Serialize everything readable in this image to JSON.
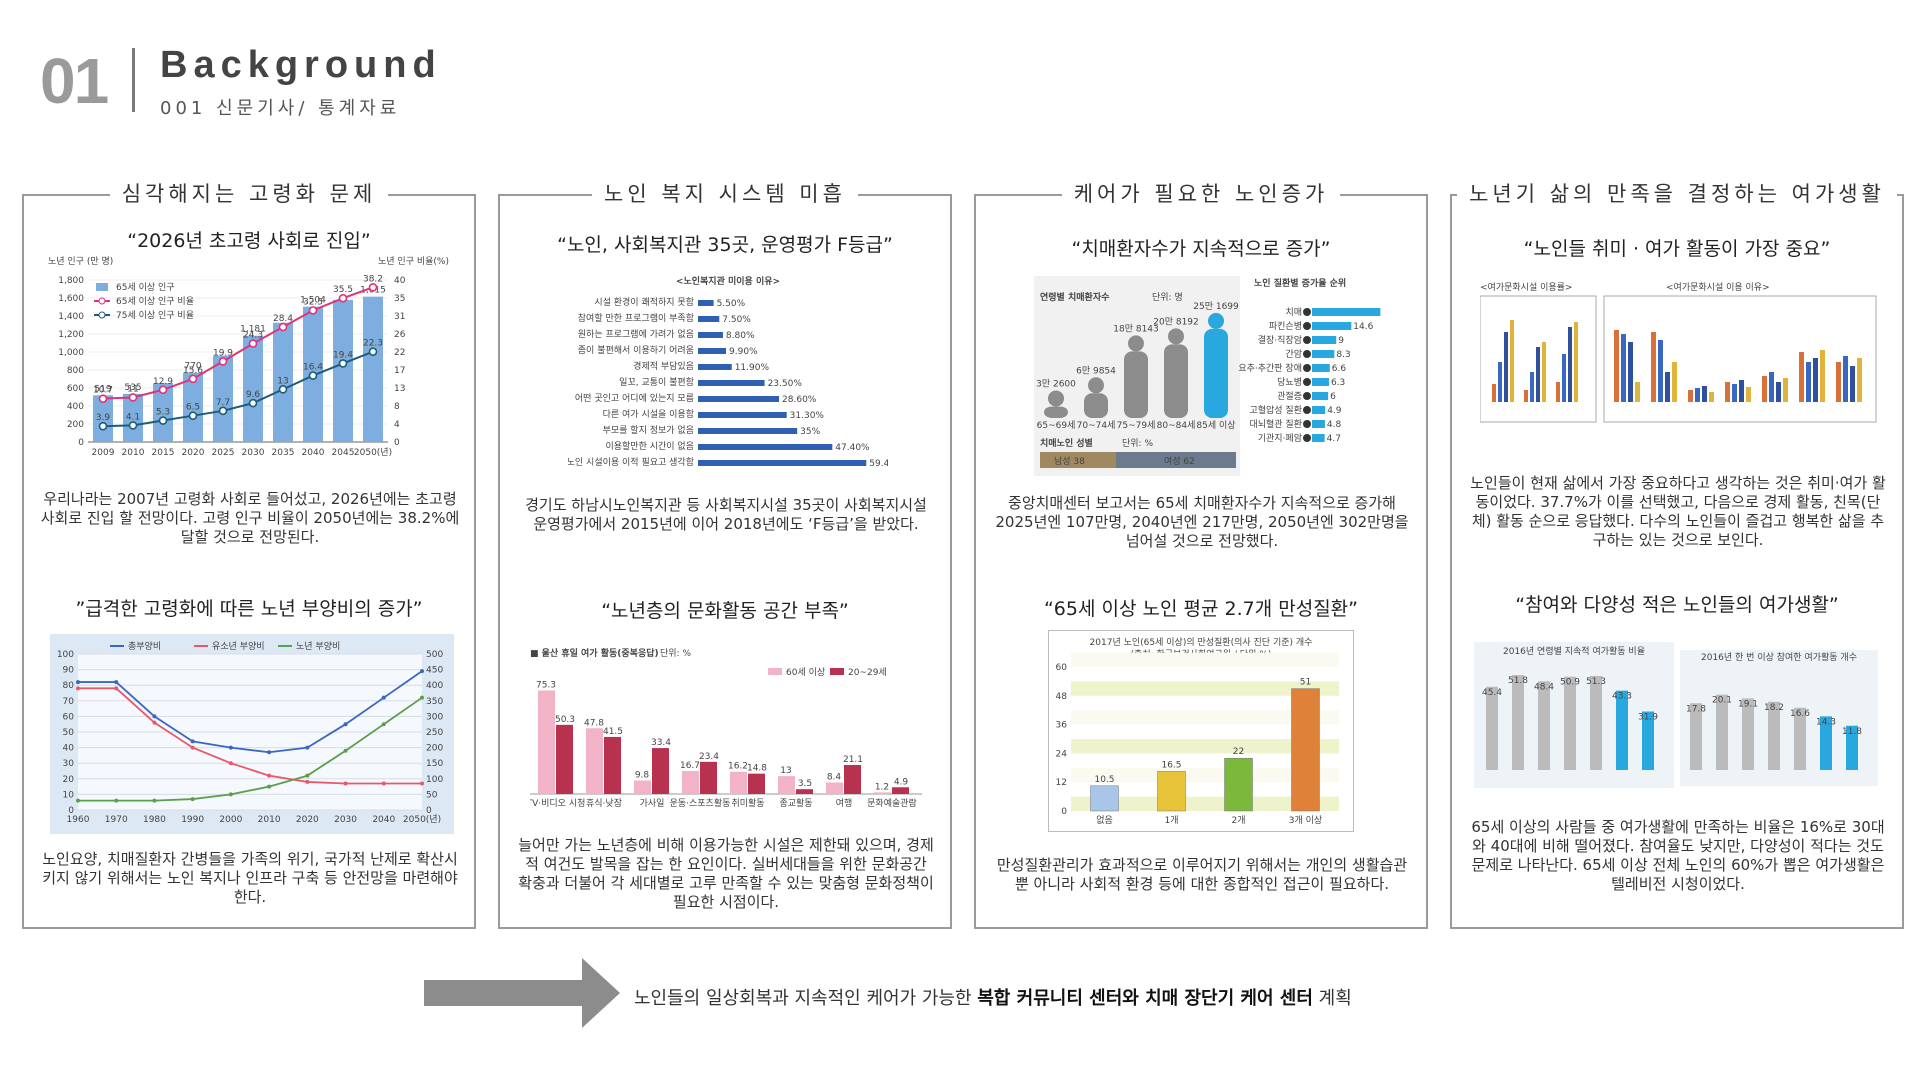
{
  "header": {
    "number": "01",
    "title": "Background",
    "subtitle": "001 신문기사/ 통계자료"
  },
  "panels": [
    {
      "title": "심각해지는 고령화 문제",
      "sections": [
        {
          "heading": "“2026년 초고령 사회로 진입”",
          "body": "우리나라는 2007년 고령화 사회로 들어섰고, 2026년에는 초고령 사회로 진입 할 전망이다. 고령 인구 비율이 2050년에는 38.2%에 달할 것으로 전망된다."
        },
        {
          "heading": "”급격한 고령화에 따른 노년 부양비의 증가”",
          "body": "노인요양, 치매질환자 간병들을 가족의 위기, 국가적 난제로 확산시키지 않기 위해서는 노인 복지나 인프라 구축 등 안전망을 마련해야 한다."
        }
      ]
    },
    {
      "title": "노인 복지 시스템 미흡",
      "sections": [
        {
          "heading": "“노인, 사회복지관 35곳, 운영평가 F등급”",
          "body": "경기도 하남시노인복지관 등 사회복지시설 35곳이 사회복지시설 운영평가에서 2015년에 이어 2018년에도 ‘F등급’을 받았다."
        },
        {
          "heading": "“노년층의 문화활동 공간 부족”",
          "body": "늘어만 가는 노년층에 비해 이용가능한 시설은 제한돼 있으며, 경제적 여건도 발목을 잡는 한 요인이다. 실버세대들을 위한 문화공간 확충과 더불어 각 세대별로 고루 만족할 수 있는 맞춤형 문화정책이 필요한 시점이다."
        }
      ]
    },
    {
      "title": "케어가 필요한 노인증가",
      "sections": [
        {
          "heading": "“치매환자수가 지속적으로 증가”",
          "body": "중앙치매센터 보고서는 65세 치매환자수가 지속적으로 증가해 2025년엔 107만명, 2040년엔 217만명, 2050년엔 302만명을 넘어설 것으로 전망했다."
        },
        {
          "heading": "“65세 이상 노인 평균 2.7개 만성질환”",
          "body": "만성질환관리가 효과적으로 이루어지기 위해서는 개인의 생활습관 뿐 아니라 사회적 환경 등에 대한 종합적인 접근이 필요하다."
        }
      ]
    },
    {
      "title": "노년기 삶의 만족을 결정하는 여가생활",
      "sections": [
        {
          "heading": "“노인들 취미 · 여가 활동이 가장 중요”",
          "body": "노인들이 현재 삶에서 가장 중요하다고 생각하는 것은 취미·여가 활동이었다. 37.7%가 이를 선택했고, 다음으로 경제 활동, 친목(단체) 활동 순으로 응답했다. 다수의 노인들이 즐겁고 행복한 삶을 추구하는 있는 것으로 보인다."
        },
        {
          "heading": "“참여와 다양성 적은 노인들의 여가생활”",
          "body": "65세 이상의 사람들 중 여가생활에 만족하는 비율은 16%로 30대와 40대에 비해 떨어졌다. 참여율도 낮지만, 다양성이 적다는 것도 문제로 나타난다. 65세 이상 전체 노인의 60%가 뽑은 여가생활은 텔레비전 시청이었다."
        }
      ]
    }
  ],
  "bottom": {
    "text_normal": "노인들의 일상회복과 지속적인 케어가 가능한 ",
    "text_bold": "복합 커뮤니티 센터와 치매 장단기 케어 센터",
    "text_end": " 계획"
  },
  "figures": {
    "aging": {
      "ylabel_left": "노년 인구 (만 명)",
      "ylabel_right": "노년 인구 비율(%)",
      "legend": [
        "65세 이상 인구",
        "65세 이상 인구 비율",
        "75세 이상 인구 비율"
      ],
      "years": [
        "2009",
        "2010",
        "2015",
        "2020",
        "2025",
        "2030",
        "2035",
        "2040",
        "2045",
        "2050(년)"
      ],
      "pop": [
        519,
        535,
        654,
        770,
        960,
        1181,
        1325,
        1504,
        1579,
        1615
      ],
      "pop_labels": [
        "519",
        "535",
        "",
        "770",
        "",
        "1,181",
        "",
        "1,504",
        "",
        "1,615"
      ],
      "ratio65": [
        10.7,
        11.0,
        12.9,
        15.6,
        19.9,
        24.3,
        28.4,
        32.5,
        35.5,
        38.2
      ],
      "ratio75": [
        3.9,
        4.1,
        5.3,
        6.5,
        7.7,
        9.6,
        13.0,
        16.4,
        19.4,
        22.3
      ],
      "colors": {
        "bar": "#7eaee0",
        "r65": "#e0327a",
        "r75": "#1e5d7a"
      }
    },
    "dependency": {
      "legend": [
        "총부양비",
        "유소년 부양비",
        "노년 부양비"
      ],
      "years": [
        "1960",
        "1970",
        "1980",
        "1990",
        "2000",
        "2010",
        "2020",
        "2030",
        "2040",
        "2050(년)"
      ],
      "total": [
        82,
        82,
        60,
        44,
        40,
        37,
        40,
        55,
        72,
        89
      ],
      "youth": [
        78,
        78,
        56,
        40,
        30,
        22,
        18,
        17,
        17,
        17
      ],
      "elderly": [
        6,
        6,
        6,
        7,
        10,
        15,
        22,
        38,
        55,
        72
      ],
      "colors": {
        "total": "#3a66c4",
        "youth": "#e8586a",
        "elderly": "#5aa04a"
      }
    },
    "welfare": {
      "title": "<노인복지관 미이용 이유>",
      "labels": [
        "시설 환경이 쾌적하지 못함",
        "참여할 만한 프로그램이 부족함",
        "원하는 프로그램에 가려가 없음",
        "좀이 불편해서 이용하기 어려움",
        "경제적 부담있음",
        "일꼬, 교통이 불편함",
        "어떤 곳인고 어디에 있는지 모름",
        "다른 여가 시설을 이용함",
        "부모를 할지 정보가 없음",
        "이용할만한 시간이 없음",
        "노인 시설이용 이적 필요고 생각함"
      ],
      "values": [
        5.5,
        7.5,
        8.8,
        9.9,
        11.9,
        23.5,
        28.6,
        31.3,
        35,
        47.4,
        59.4
      ],
      "value_labels": [
        "5.50%",
        "7.50%",
        "8.80%",
        "9.90%",
        "11.90%",
        "23.50%",
        "28.60%",
        "31.30%",
        "35%",
        "47.40%",
        "59.40%"
      ],
      "color": "#2f5fb3"
    },
    "culture": {
      "title": "■ 울산 휴일 여가 활동(중복응답)",
      "unit": "단위: %",
      "legend": [
        "60세 이상",
        "20~29세"
      ],
      "categories": [
        "TV·비디오 시청",
        "휴식·낮잠",
        "가사일",
        "운동·스포츠활동",
        "취미활동",
        "종교활동",
        "여행",
        "문화예술관람"
      ],
      "a": [
        75.3,
        47.8,
        9.8,
        16.7,
        16.2,
        13.0,
        8.4,
        1.2
      ],
      "b": [
        50.3,
        41.5,
        33.4,
        23.4,
        14.8,
        3.5,
        21.1,
        4.9
      ],
      "colors": {
        "a": "#f3b3c6",
        "b": "#b8324f"
      }
    },
    "dementia": {
      "title": "연령별 치매환자수",
      "unit": "단위: 명",
      "groups": [
        "65~69세",
        "70~74세",
        "75~79세",
        "80~84세",
        "85세 이상"
      ],
      "values": [
        32600,
        69854,
        188143,
        208192,
        251699
      ],
      "labels": [
        "3만 2600",
        "6만 9854",
        "18만 8143",
        "20만 8192",
        "25만 1699"
      ],
      "gender_title": "치매노인 성별",
      "gender_unit": "단위: %",
      "male": "남성 38",
      "female": "여성 62",
      "rank_title": "노인 질환별 증가율 순위",
      "rank_values": [
        25.4,
        14.6,
        9.0,
        8.3,
        6.6,
        6.3,
        6.0,
        4.9,
        4.8,
        4.7
      ],
      "rank_labels": [
        "치매",
        "파킨슨병",
        "결장·직장암",
        "간암",
        "요추·추간판 장애",
        "당뇨병",
        "관절증",
        "고혈압성 질환",
        "대뇌혈관 질환",
        "기관지·폐암"
      ],
      "colors": {
        "gray": "#8c8c8c",
        "blue": "#29a8e0"
      }
    },
    "chronic": {
      "title": "2017년 노인(65세 이상)의 만성질환(의사 진단 기준) 개수",
      "source": "(출처: 한국보건사회연구원 / 단위:%)",
      "categories": [
        "없음",
        "1개",
        "2개",
        "3개 이상"
      ],
      "values": [
        10.5,
        16.5,
        22,
        51
      ],
      "value_labels": [
        "10.5",
        "16.5",
        "22",
        "51"
      ],
      "colors": [
        "#a9c6e8",
        "#e8c43a",
        "#7bb83c",
        "#e0813a"
      ]
    },
    "leisure": {
      "left_title": "<여가문화시설 이용률>",
      "right_title": "<여가문화시설 이용 이유>"
    },
    "satisfaction": {
      "left_title": "2016년 연령별 지속적 여가활동 비율",
      "right_title": "2016년 한 번 이상 참여한 여가활동 개수",
      "left_values": [
        45.4,
        51.8,
        48.4,
        50.9,
        51.3,
        43.3,
        31.9
      ],
      "right_values": [
        17.8,
        20.1,
        19.1,
        18.2,
        16.6,
        14.3,
        11.8
      ]
    }
  }
}
